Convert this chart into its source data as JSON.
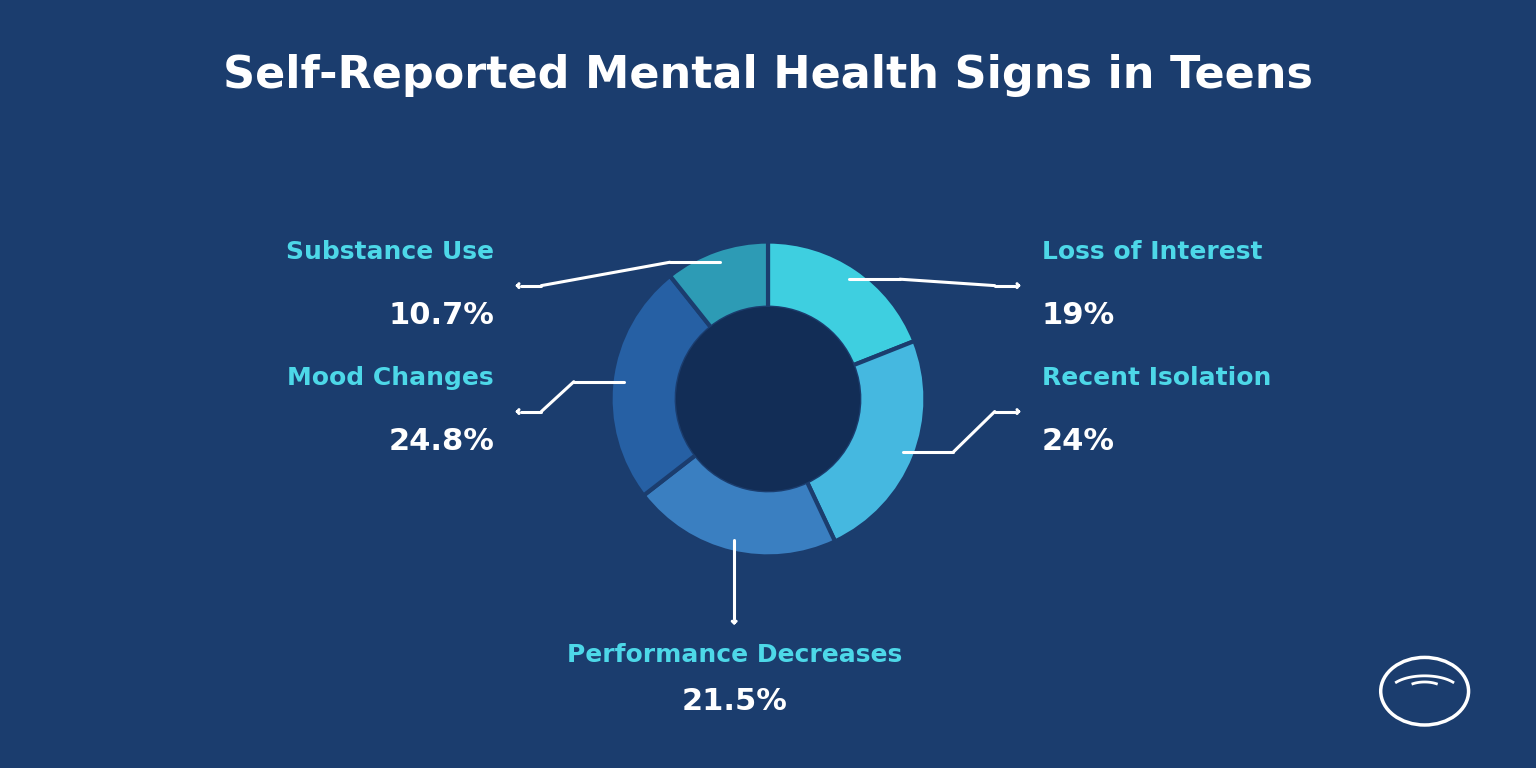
{
  "title": "Self-Reported Mental Health Signs in Teens",
  "background_color": "#1b3d6e",
  "title_color": "#ffffff",
  "title_fontsize": 32,
  "segments": [
    {
      "label": "Loss of Interest",
      "value": 19.0,
      "color": "#3ecfe0",
      "pct_str": "19%"
    },
    {
      "label": "Recent Isolation",
      "value": 24.0,
      "color": "#45b8e0",
      "pct_str": "24%"
    },
    {
      "label": "Performance Decreases",
      "value": 21.5,
      "color": "#3a7fc1",
      "pct_str": "21.5%"
    },
    {
      "label": "Mood Changes",
      "value": 24.8,
      "color": "#2660a4",
      "pct_str": "24.8%"
    },
    {
      "label": "Substance Use",
      "value": 10.7,
      "color": "#2d9bb5",
      "pct_str": "10.7%"
    }
  ],
  "label_color": "#4dd8e8",
  "pct_color": "#ffffff",
  "label_fontsize": 18,
  "pct_fontsize": 22,
  "start_angle": 90,
  "donut_width": 0.42,
  "center_color": "#122d56",
  "arrow_color": "#ffffff",
  "logo_color": "#ffffff"
}
